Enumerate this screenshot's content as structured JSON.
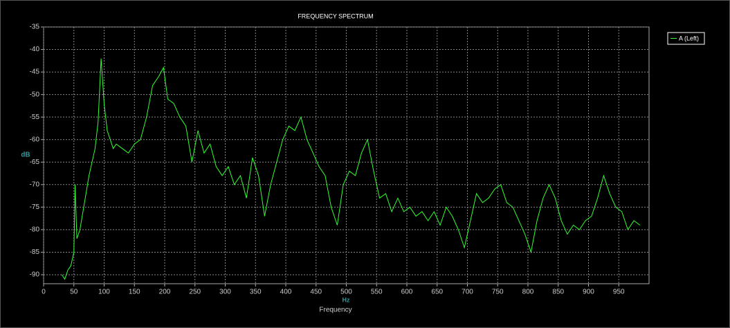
{
  "chart_data": {
    "type": "line",
    "title": "FREQUENCY SPECTRUM",
    "y_label": "dB",
    "x_unit": "Hz",
    "x_label": "Frequency",
    "legend": "top-right",
    "grid": true,
    "xlim": [
      0,
      1000
    ],
    "xticks": [
      0,
      50,
      100,
      150,
      200,
      250,
      300,
      350,
      400,
      450,
      500,
      550,
      600,
      650,
      700,
      750,
      800,
      850,
      900,
      950
    ],
    "ylim": [
      -92,
      -35
    ],
    "yticks": [
      -90,
      -85,
      -80,
      -75,
      -70,
      -65,
      -60,
      -55,
      -50,
      -45,
      -40,
      -35
    ],
    "x": [
      30,
      35,
      40,
      45,
      50,
      52,
      55,
      60,
      65,
      70,
      75,
      80,
      85,
      90,
      95,
      100,
      105,
      110,
      115,
      120,
      130,
      140,
      150,
      160,
      170,
      180,
      190,
      198,
      205,
      215,
      225,
      235,
      245,
      255,
      265,
      275,
      285,
      295,
      305,
      315,
      325,
      335,
      345,
      355,
      365,
      375,
      385,
      395,
      405,
      415,
      425,
      435,
      445,
      455,
      465,
      475,
      485,
      495,
      505,
      515,
      525,
      535,
      545,
      555,
      565,
      575,
      585,
      595,
      605,
      615,
      625,
      635,
      645,
      655,
      665,
      675,
      685,
      695,
      705,
      715,
      725,
      735,
      745,
      755,
      765,
      775,
      785,
      795,
      805,
      815,
      825,
      835,
      845,
      855,
      865,
      875,
      885,
      895,
      905,
      915,
      925,
      935,
      945,
      955,
      965,
      975,
      985
    ],
    "series": [
      {
        "name": "A (Left)",
        "color": "#33ff33",
        "values": [
          -90,
          -91,
          -89,
          -88,
          -85,
          -70,
          -82,
          -80,
          -76,
          -72,
          -68,
          -65,
          -62,
          -56,
          -42,
          -52,
          -58,
          -60,
          -62,
          -61,
          -62,
          -63,
          -61,
          -60,
          -55,
          -48,
          -46,
          -44,
          -51,
          -52,
          -55,
          -57,
          -65,
          -58,
          -63,
          -61,
          -66,
          -68,
          -66,
          -70,
          -68,
          -73,
          -64,
          -68,
          -77,
          -70,
          -65,
          -60,
          -57,
          -58,
          -55,
          -60,
          -63,
          -66,
          -68,
          -75,
          -79,
          -70,
          -67,
          -68,
          -63,
          -60,
          -67,
          -73,
          -72,
          -76,
          -73,
          -76,
          -75,
          -77,
          -76,
          -78,
          -76,
          -79,
          -75,
          -77,
          -80,
          -84,
          -78,
          -72,
          -74,
          -73,
          -71,
          -70,
          -74,
          -75,
          -78,
          -81,
          -85,
          -78,
          -73,
          -70,
          -73,
          -78,
          -81,
          -79,
          -80,
          -78,
          -77,
          -73,
          -68,
          -72,
          -75,
          -76,
          -80,
          -78,
          -79
        ]
      }
    ]
  }
}
